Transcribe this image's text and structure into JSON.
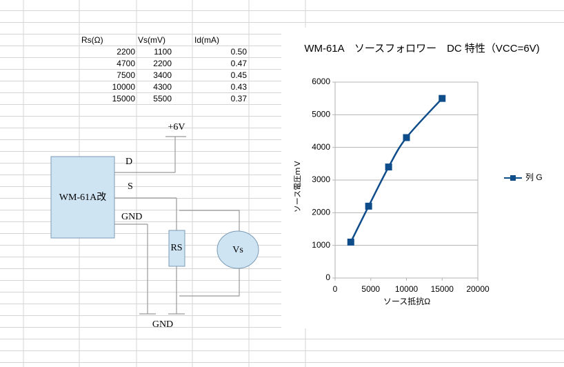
{
  "table": {
    "header": [
      "Rs(Ω)",
      "Vs(mV)",
      "Id(mA)"
    ],
    "rows": [
      [
        "2200",
        "1100",
        "0.50"
      ],
      [
        "4700",
        "2200",
        "0.47"
      ],
      [
        "7500",
        "3400",
        "0.45"
      ],
      [
        "10000",
        "4300",
        "0.43"
      ],
      [
        "15000",
        "5500",
        "0.37"
      ]
    ]
  },
  "diagram": {
    "supply": "+6V",
    "pin_d": "D",
    "pin_s": "S",
    "pin_gnd": "GND",
    "device": "WM-61A改",
    "resistor": "RS",
    "meter": "Vs",
    "ground": "GND"
  },
  "chart_data": {
    "type": "line",
    "title": "WM-61A　ソースフォロワー　DC 特性（VCC=6V)",
    "x_label": "ソース抵抗Ω",
    "y_label": "ソース電圧ｍＶ",
    "x": [
      2200,
      4700,
      7500,
      10000,
      15000
    ],
    "series": [
      {
        "name": "列 G",
        "color": "#0e4c8a",
        "values": [
          1100,
          2200,
          3400,
          4300,
          5500
        ]
      }
    ],
    "xlim": [
      0,
      20000
    ],
    "xticks": [
      0,
      5000,
      10000,
      15000,
      20000
    ],
    "ylim": [
      0,
      6000
    ],
    "yticks": [
      0,
      1000,
      2000,
      3000,
      4000,
      5000,
      6000
    ],
    "grid": true,
    "legend": "right"
  }
}
